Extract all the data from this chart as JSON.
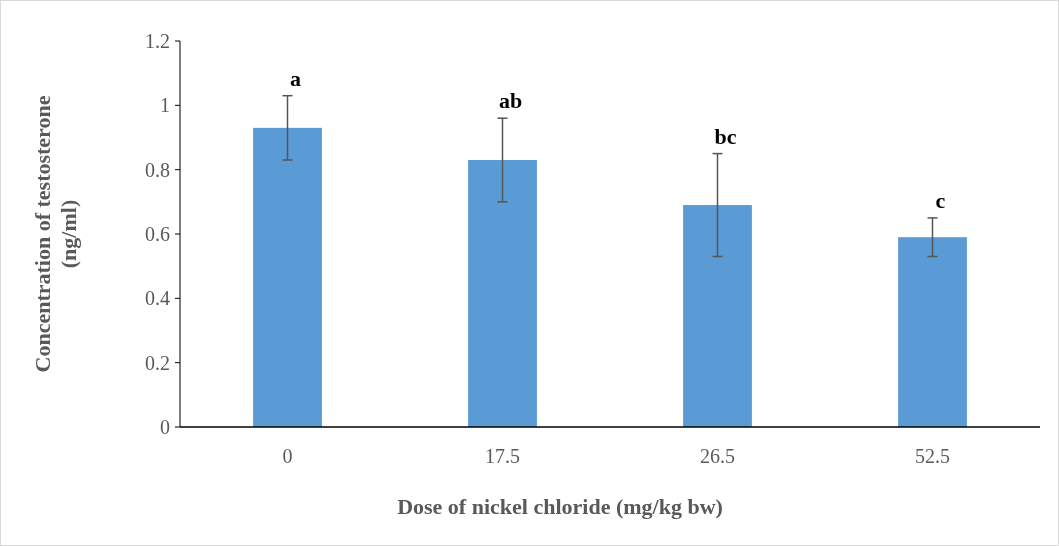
{
  "chart_data": {
    "type": "bar",
    "xlabel": "Dose of nickel chloride (mg/kg bw)",
    "ylabel": "Concentration of testosterone (ng/ml)",
    "categories": [
      "0",
      "17.5",
      "26.5",
      "52.5"
    ],
    "values": [
      0.93,
      0.83,
      0.69,
      0.59
    ],
    "color": "#5b9bd5",
    "errors": [
      0.1,
      0.13,
      0.16,
      0.06
    ],
    "ylim": [
      0,
      1.2
    ],
    "yticks": [
      0,
      0.2,
      0.4,
      0.6,
      0.8,
      1,
      1.2
    ],
    "grid": false,
    "annotations": [
      {
        "text": "a",
        "x": "0",
        "y": 1.03
      },
      {
        "text": "ab",
        "x": "17.5",
        "y": 0.96
      },
      {
        "text": "bc",
        "x": "26.5",
        "y": 0.85
      },
      {
        "text": "c",
        "x": "52.5",
        "y": 0.65
      }
    ]
  }
}
